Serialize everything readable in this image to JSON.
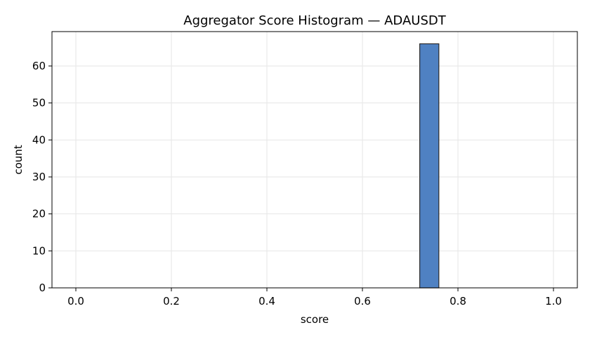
{
  "chart_data": {
    "type": "bar",
    "title": "Aggregator Score Histogram — ADAUSDT",
    "xlabel": "score",
    "ylabel": "count",
    "xlim": [
      -0.05,
      1.05
    ],
    "ylim": [
      0,
      69.3
    ],
    "xticks": [
      0.0,
      0.2,
      0.4,
      0.6,
      0.8,
      1.0
    ],
    "xtick_labels": [
      "0.0",
      "0.2",
      "0.4",
      "0.6",
      "0.8",
      "1.0"
    ],
    "yticks": [
      0,
      10,
      20,
      30,
      40,
      50,
      60
    ],
    "ytick_labels": [
      "0",
      "10",
      "20",
      "30",
      "40",
      "50",
      "60"
    ],
    "grid": true,
    "bins": {
      "start": 0.0,
      "width": 0.04,
      "values": [
        0,
        0,
        0,
        0,
        0,
        0,
        0,
        0,
        0,
        0,
        0,
        0,
        0,
        0,
        0,
        0,
        0,
        0,
        66,
        0,
        0,
        0,
        0,
        0,
        0
      ]
    },
    "bar_color": "#4f81c2",
    "bar_edge_color": "#2b2b2b",
    "grid_color": "#e6e6e6"
  }
}
